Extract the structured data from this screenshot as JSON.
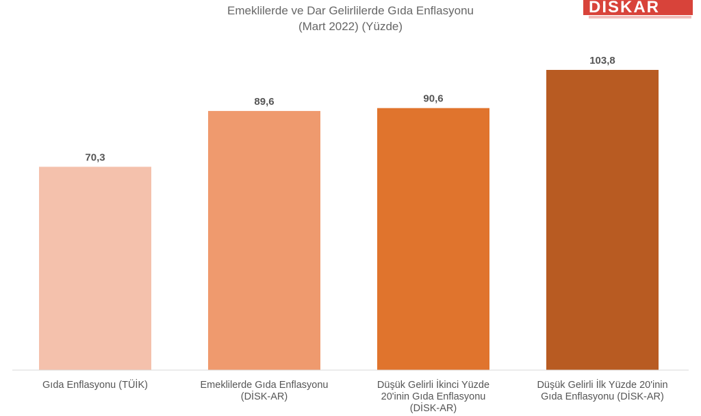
{
  "logo": {
    "text": "DİSKAR"
  },
  "chart_data": {
    "type": "bar",
    "title": "Emeklilerde ve Dar Gelirlilerde Gıda Enflasyonu",
    "subtitle": "(Mart 2022) (Yüzde)",
    "categories": [
      [
        "Gıda Enflasyonu (TÜİK)"
      ],
      [
        "Emeklilerde Gıda Enflasyonu",
        "(DİSK-AR)"
      ],
      [
        "Düşük Gelirli İkinci Yüzde",
        "20'inin Gıda Enflasyonu",
        "(DİSK-AR)"
      ],
      [
        "Düşük Gelirli İlk Yüzde 20'inin",
        "Gıda Enflasyonu (DİSK-AR)"
      ]
    ],
    "values": [
      70.3,
      89.6,
      90.6,
      103.8
    ],
    "value_labels": [
      "70,3",
      "89,6",
      "90,6",
      "103,8"
    ],
    "colors": [
      "#f4c1ac",
      "#ef9a6e",
      "#e0742d",
      "#b85b22"
    ],
    "ylim": [
      0,
      103.8
    ],
    "grid": false,
    "legend": "none"
  }
}
